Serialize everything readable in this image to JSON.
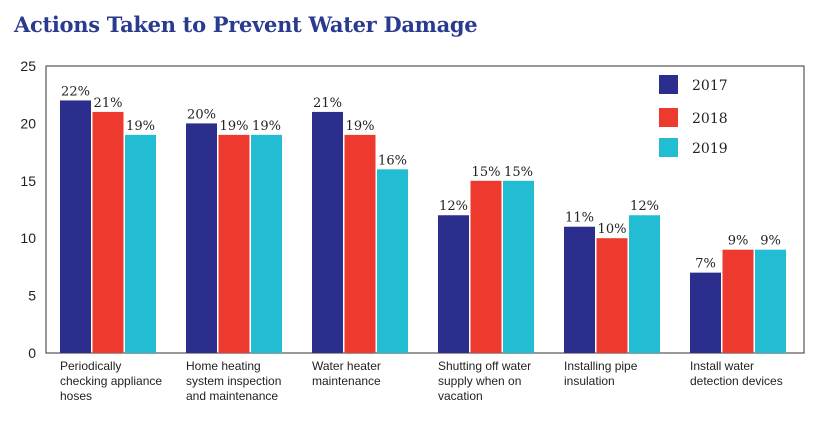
{
  "chart_data": {
    "type": "bar",
    "title": "Actions Taken to Prevent Water Damage",
    "xlabel": "",
    "ylabel": "",
    "ylim": [
      0,
      25
    ],
    "yticks": [
      0,
      5,
      10,
      15,
      20,
      25
    ],
    "grid": false,
    "legend_position": "top-right",
    "categories": [
      [
        "Periodically",
        "checking appliance",
        "hoses"
      ],
      [
        "Home heating",
        "system inspection",
        "and maintenance"
      ],
      [
        "Water heater",
        "maintenance"
      ],
      [
        "Shutting off water",
        "supply when on",
        "vacation"
      ],
      [
        "Installing pipe",
        "insulation"
      ],
      [
        "Install water",
        "detection devices"
      ]
    ],
    "series": [
      {
        "name": "2017",
        "color": "#2b2e8c",
        "values": [
          22,
          20,
          21,
          12,
          11,
          7
        ],
        "labels": [
          "22%",
          "20%",
          "21%",
          "12%",
          "11%",
          "7%"
        ]
      },
      {
        "name": "2018",
        "color": "#ee3a2e",
        "values": [
          21,
          19,
          19,
          15,
          10,
          9
        ],
        "labels": [
          "21%",
          "19%",
          "19%",
          "15%",
          "10%",
          "9%"
        ]
      },
      {
        "name": "2019",
        "color": "#22bdd3",
        "values": [
          19,
          19,
          16,
          15,
          12,
          9
        ],
        "labels": [
          "19%",
          "19%",
          "16%",
          "15%",
          "12%",
          "9%"
        ]
      }
    ]
  }
}
